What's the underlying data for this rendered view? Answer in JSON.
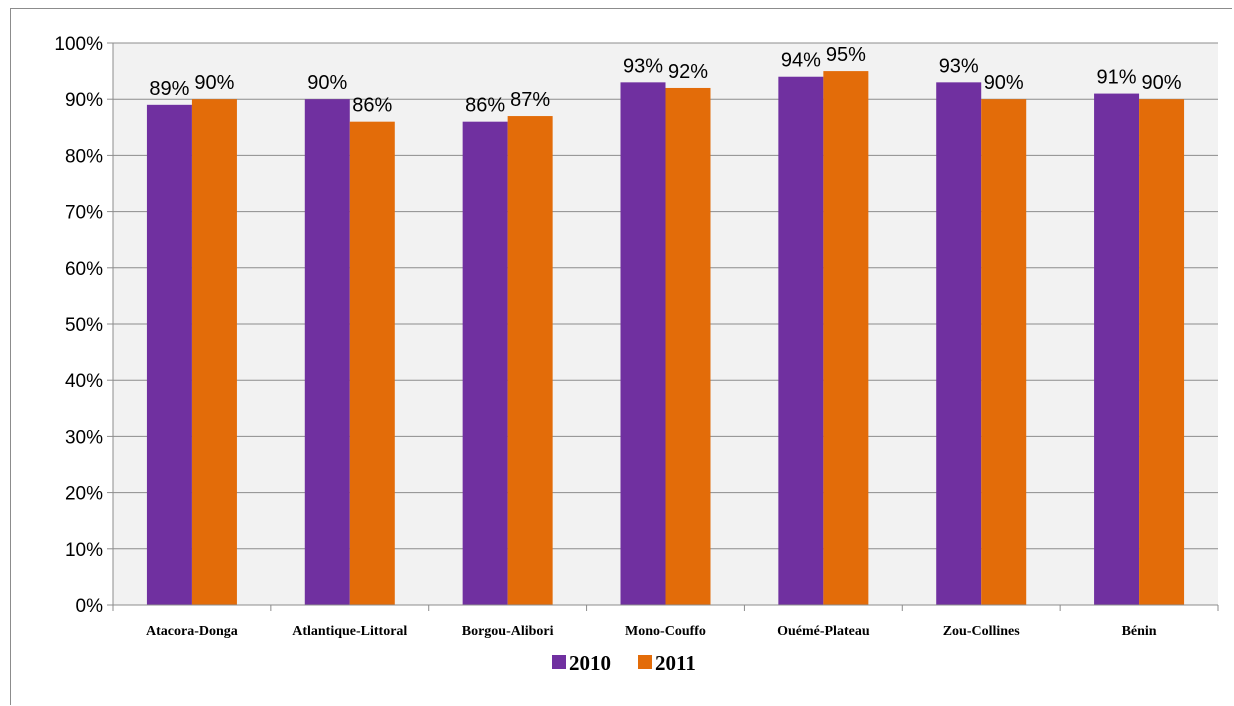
{
  "chart_data": {
    "type": "bar",
    "title": "",
    "xlabel": "",
    "ylabel": "",
    "categories": [
      "Atacora-Donga",
      "Atlantique-Littoral",
      "Borgou-Alibori",
      "Mono-Couffo",
      "Ouémé-Plateau",
      "Zou-Collines",
      "Bénin"
    ],
    "series": [
      {
        "name": "2010",
        "color": "#7030a0",
        "values": [
          89,
          90,
          86,
          93,
          94,
          93,
          91
        ],
        "labels": [
          "89%",
          "90%",
          "86%",
          "93%",
          "94%",
          "93%",
          "91%"
        ]
      },
      {
        "name": "2011",
        "color": "#e36c09",
        "values": [
          90,
          86,
          87,
          92,
          95,
          90,
          90
        ],
        "labels": [
          "90%",
          "86%",
          "87%",
          "92%",
          "95%",
          "90%",
          "90%"
        ]
      }
    ],
    "ylim": [
      0,
      100
    ],
    "yticks": [
      0,
      10,
      20,
      30,
      40,
      50,
      60,
      70,
      80,
      90,
      100
    ],
    "ytick_labels": [
      "0%",
      "10%",
      "20%",
      "30%",
      "40%",
      "50%",
      "60%",
      "70%",
      "80%",
      "90%",
      "100%"
    ],
    "grid": true,
    "plot_background": "#f2f2f2",
    "legend_position": "bottom"
  }
}
